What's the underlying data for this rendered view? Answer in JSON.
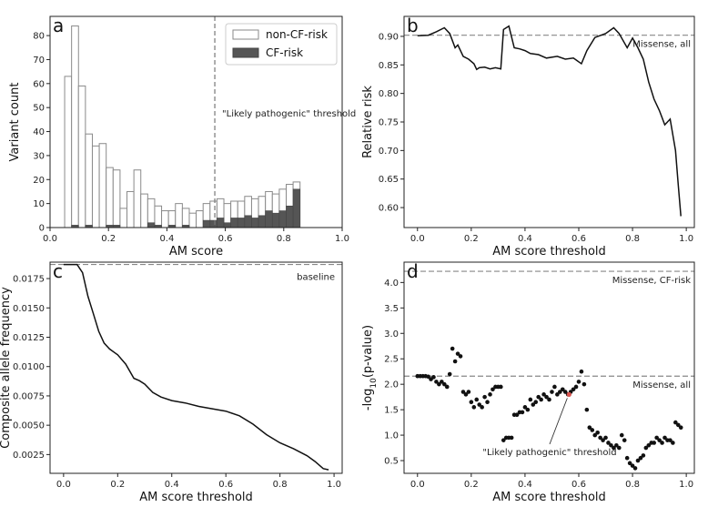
{
  "chart_data": [
    {
      "panel": "a",
      "type": "bar",
      "xlabel": "AM score",
      "ylabel": "Variant count",
      "xlim": [
        0,
        1
      ],
      "ylim": [
        0,
        88
      ],
      "xticks": [
        "0.0",
        "0.2",
        "0.4",
        "0.6",
        "0.8",
        "1.0"
      ],
      "xtick_values": [
        0,
        0.2,
        0.4,
        0.6,
        0.8,
        1.0
      ],
      "yticks": [
        "0",
        "10",
        "20",
        "30",
        "40",
        "50",
        "60",
        "70",
        "80"
      ],
      "ytick_values": [
        0,
        10,
        20,
        30,
        40,
        50,
        60,
        70,
        80
      ],
      "bin_start": 0.05,
      "bin_width": 0.0237,
      "series": [
        {
          "name": "non-CF-risk",
          "color": "#ffffff",
          "values": [
            63,
            84,
            59,
            39,
            34,
            35,
            25,
            24,
            8,
            15,
            24,
            14,
            12,
            9,
            7,
            7,
            10,
            8,
            6,
            7,
            10,
            11,
            12,
            10,
            11,
            11,
            13,
            12,
            13,
            15,
            14,
            16,
            18,
            19
          ]
        },
        {
          "name": "CF-risk",
          "color": "#555555",
          "values": [
            0,
            1,
            0,
            1,
            0,
            0,
            1,
            1,
            0,
            0,
            0,
            0,
            2,
            1,
            0,
            1,
            0,
            1,
            0,
            0,
            3,
            3,
            4,
            2,
            4,
            4,
            5,
            4,
            5,
            7,
            6,
            7,
            9,
            16
          ]
        }
      ],
      "legend": {
        "position": "top-right",
        "entries": [
          "non-CF-risk",
          "CF-risk"
        ]
      },
      "threshold": {
        "x": 0.564,
        "label": "\"Likely pathogenic\" threshold"
      }
    },
    {
      "panel": "b",
      "type": "line",
      "xlabel": "AM score threshold",
      "ylabel": "Relative risk",
      "xlim": [
        -0.05,
        1.03
      ],
      "ylim": [
        0.565,
        0.935
      ],
      "xticks": [
        "0.0",
        "0.2",
        "0.4",
        "0.6",
        "0.8",
        "1.0"
      ],
      "xtick_values": [
        0,
        0.2,
        0.4,
        0.6,
        0.8,
        1.0
      ],
      "yticks": [
        "0.60",
        "0.65",
        "0.70",
        "0.75",
        "0.80",
        "0.85",
        "0.90"
      ],
      "ytick_values": [
        0.6,
        0.65,
        0.7,
        0.75,
        0.8,
        0.85,
        0.9
      ],
      "baseline": {
        "y": 0.902,
        "label": "Missense, all"
      },
      "x": [
        0.0,
        0.04,
        0.07,
        0.1,
        0.12,
        0.14,
        0.15,
        0.17,
        0.19,
        0.21,
        0.22,
        0.23,
        0.25,
        0.27,
        0.29,
        0.31,
        0.32,
        0.34,
        0.36,
        0.38,
        0.4,
        0.42,
        0.45,
        0.48,
        0.52,
        0.55,
        0.58,
        0.61,
        0.63,
        0.66,
        0.7,
        0.73,
        0.75,
        0.78,
        0.8,
        0.82,
        0.84,
        0.86,
        0.88,
        0.9,
        0.92,
        0.94,
        0.96,
        0.97,
        0.98
      ],
      "y": [
        0.901,
        0.902,
        0.908,
        0.915,
        0.905,
        0.88,
        0.885,
        0.865,
        0.86,
        0.852,
        0.842,
        0.845,
        0.846,
        0.843,
        0.845,
        0.843,
        0.912,
        0.918,
        0.88,
        0.878,
        0.875,
        0.87,
        0.868,
        0.862,
        0.865,
        0.86,
        0.862,
        0.852,
        0.875,
        0.898,
        0.905,
        0.915,
        0.905,
        0.88,
        0.897,
        0.88,
        0.86,
        0.82,
        0.79,
        0.77,
        0.745,
        0.755,
        0.7,
        0.64,
        0.585
      ]
    },
    {
      "panel": "c",
      "type": "line",
      "xlabel": "AM score threshold",
      "ylabel": "Composite allele frequency",
      "xlim": [
        -0.05,
        1.03
      ],
      "ylim": [
        0.0009,
        0.0189
      ],
      "xticks": [
        "0.0",
        "0.2",
        "0.4",
        "0.6",
        "0.8",
        "1.0"
      ],
      "xtick_values": [
        0,
        0.2,
        0.4,
        0.6,
        0.8,
        1.0
      ],
      "yticks": [
        "0.0025",
        "0.0050",
        "0.0075",
        "0.0100",
        "0.0125",
        "0.0150",
        "0.0175"
      ],
      "ytick_values": [
        0.0025,
        0.005,
        0.0075,
        0.01,
        0.0125,
        0.015,
        0.0175
      ],
      "baseline": {
        "y": 0.0187,
        "label": "baseline"
      },
      "x": [
        0.0,
        0.05,
        0.07,
        0.09,
        0.11,
        0.13,
        0.15,
        0.17,
        0.2,
        0.23,
        0.26,
        0.28,
        0.3,
        0.33,
        0.36,
        0.4,
        0.45,
        0.5,
        0.55,
        0.6,
        0.65,
        0.7,
        0.75,
        0.8,
        0.85,
        0.9,
        0.93,
        0.96,
        0.98
      ],
      "y": [
        0.0187,
        0.0187,
        0.018,
        0.016,
        0.0145,
        0.013,
        0.012,
        0.0115,
        0.011,
        0.0102,
        0.009,
        0.0088,
        0.0085,
        0.0078,
        0.0074,
        0.0071,
        0.0069,
        0.0066,
        0.0064,
        0.0062,
        0.0058,
        0.0051,
        0.0042,
        0.0035,
        0.003,
        0.0024,
        0.0019,
        0.0013,
        0.0012
      ]
    },
    {
      "panel": "d",
      "type": "scatter",
      "xlabel": "AM score threshold",
      "ylabel": "-log10(p-value)",
      "xlim": [
        -0.05,
        1.03
      ],
      "ylim": [
        0.25,
        4.4
      ],
      "xticks": [
        "0.0",
        "0.2",
        "0.4",
        "0.6",
        "0.8",
        "1.0"
      ],
      "xtick_values": [
        0,
        0.2,
        0.4,
        0.6,
        0.8,
        1.0
      ],
      "yticks": [
        "0.5",
        "1.0",
        "1.5",
        "2.0",
        "2.5",
        "3.0",
        "3.5",
        "4.0"
      ],
      "ytick_values": [
        0.5,
        1.0,
        1.5,
        2.0,
        2.5,
        3.0,
        3.5,
        4.0
      ],
      "baselines": [
        {
          "y": 4.22,
          "label": "Missense, CF-risk"
        },
        {
          "y": 2.16,
          "label": "Missense, all"
        }
      ],
      "threshold_point": {
        "x": 0.564,
        "y": 1.8,
        "label": "\"Likely pathogenic\" threshold"
      },
      "x": [
        0.0,
        0.01,
        0.02,
        0.03,
        0.04,
        0.05,
        0.06,
        0.07,
        0.08,
        0.09,
        0.1,
        0.11,
        0.12,
        0.13,
        0.14,
        0.15,
        0.16,
        0.17,
        0.18,
        0.19,
        0.2,
        0.21,
        0.22,
        0.23,
        0.24,
        0.25,
        0.26,
        0.27,
        0.28,
        0.29,
        0.3,
        0.31,
        0.32,
        0.33,
        0.34,
        0.35,
        0.36,
        0.37,
        0.38,
        0.39,
        0.4,
        0.41,
        0.42,
        0.43,
        0.44,
        0.45,
        0.46,
        0.47,
        0.48,
        0.49,
        0.5,
        0.51,
        0.52,
        0.53,
        0.54,
        0.55,
        0.56,
        0.57,
        0.58,
        0.59,
        0.6,
        0.61,
        0.62,
        0.63,
        0.64,
        0.65,
        0.66,
        0.67,
        0.68,
        0.69,
        0.7,
        0.71,
        0.72,
        0.73,
        0.74,
        0.75,
        0.76,
        0.77,
        0.78,
        0.79,
        0.8,
        0.81,
        0.82,
        0.83,
        0.84,
        0.85,
        0.86,
        0.87,
        0.88,
        0.89,
        0.9,
        0.91,
        0.92,
        0.93,
        0.94,
        0.95,
        0.96,
        0.97,
        0.98
      ],
      "y": [
        2.16,
        2.16,
        2.16,
        2.16,
        2.15,
        2.1,
        2.14,
        2.05,
        2.0,
        2.05,
        2.0,
        1.95,
        2.2,
        2.7,
        2.45,
        2.6,
        2.55,
        1.85,
        1.8,
        1.85,
        1.65,
        1.55,
        1.7,
        1.6,
        1.55,
        1.75,
        1.65,
        1.8,
        1.9,
        1.95,
        1.95,
        1.95,
        0.9,
        0.95,
        0.95,
        0.95,
        1.4,
        1.4,
        1.45,
        1.45,
        1.55,
        1.5,
        1.7,
        1.6,
        1.65,
        1.75,
        1.7,
        1.8,
        1.75,
        1.7,
        1.85,
        1.95,
        1.8,
        1.85,
        1.9,
        1.85,
        1.8,
        1.85,
        1.9,
        1.95,
        2.05,
        2.25,
        2.0,
        1.5,
        1.15,
        1.1,
        1.0,
        1.05,
        0.95,
        0.9,
        0.95,
        0.85,
        0.8,
        0.75,
        0.8,
        0.75,
        1.0,
        0.9,
        0.55,
        0.45,
        0.4,
        0.35,
        0.5,
        0.55,
        0.6,
        0.75,
        0.8,
        0.85,
        0.85,
        0.95,
        0.9,
        0.85,
        0.95,
        0.9,
        0.9,
        0.85,
        1.25,
        1.2,
        1.15
      ]
    }
  ]
}
